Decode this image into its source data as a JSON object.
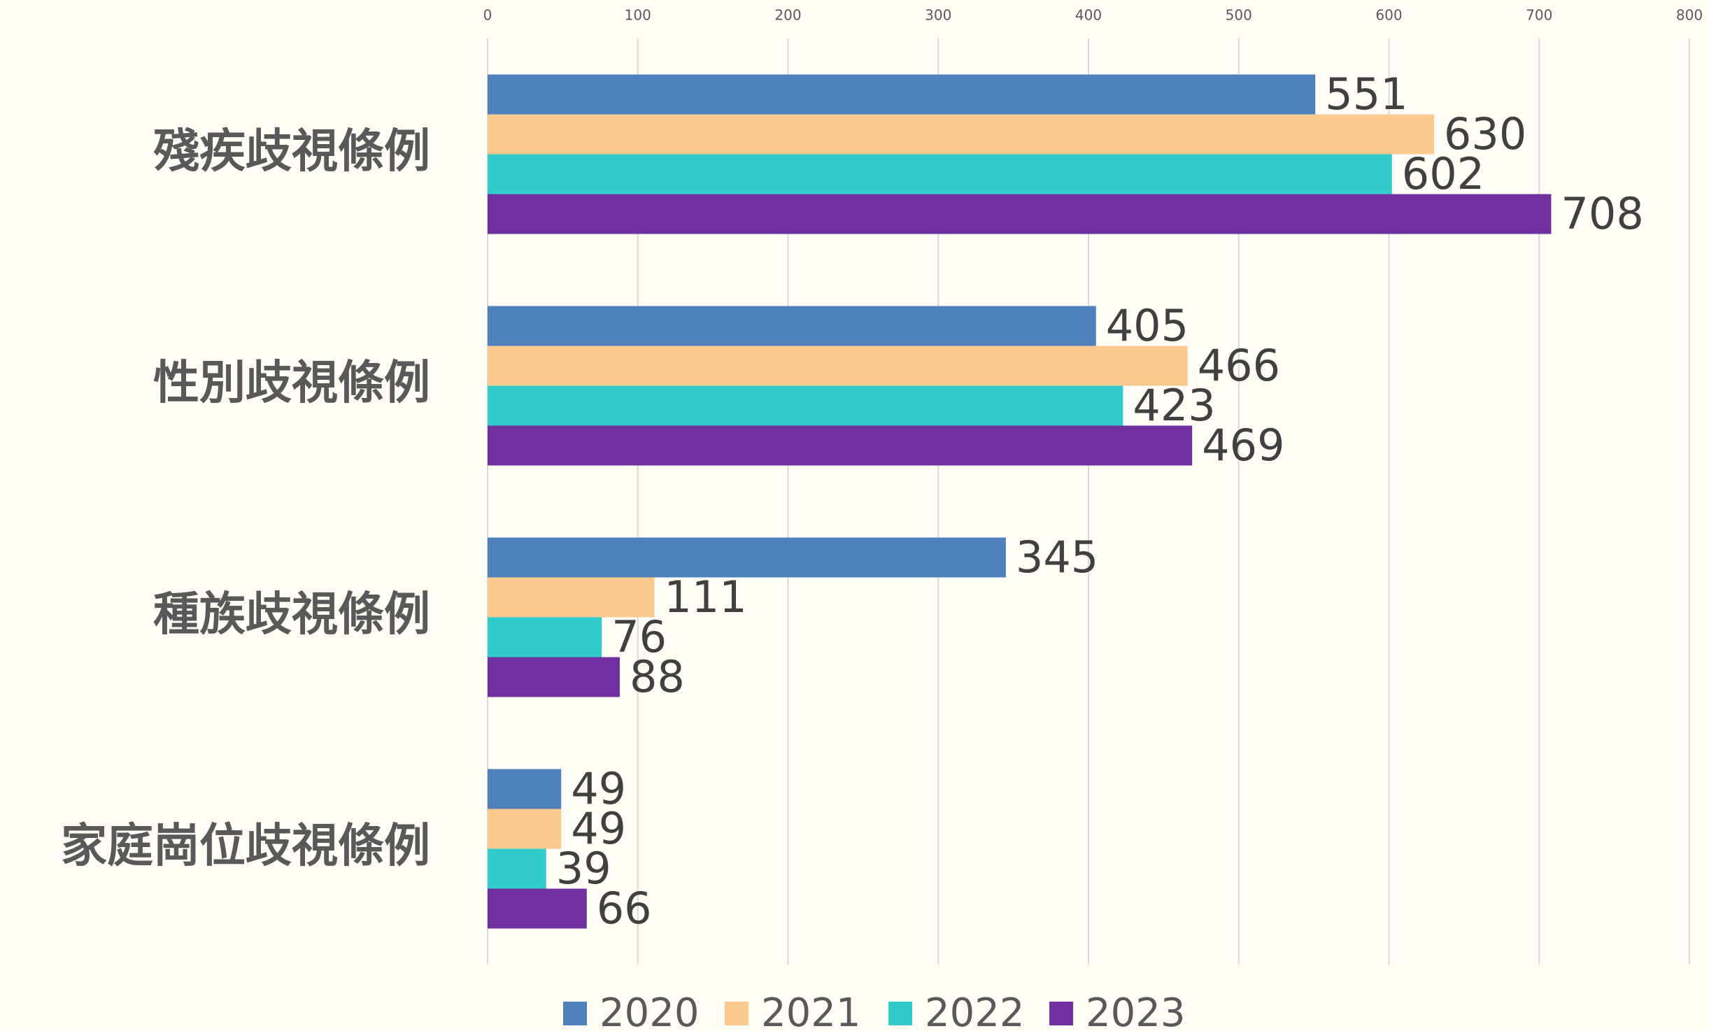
{
  "chart_data": {
    "type": "bar",
    "orientation": "horizontal",
    "categories": [
      "殘疾歧視條例",
      "性別歧視條例",
      "種族歧視條例",
      "家庭崗位歧視條例"
    ],
    "series": [
      {
        "name": "2020",
        "color": "#4f81bd",
        "values": [
          551,
          405,
          345,
          49
        ]
      },
      {
        "name": "2021",
        "color": "#fac990",
        "values": [
          630,
          466,
          111,
          49
        ]
      },
      {
        "name": "2022",
        "color": "#33cccc",
        "values": [
          602,
          423,
          76,
          39
        ]
      },
      {
        "name": "2023",
        "color": "#7030a0",
        "values": [
          708,
          469,
          88,
          66
        ]
      }
    ],
    "xlim": [
      0,
      800
    ],
    "xticks": [
      0,
      100,
      200,
      300,
      400,
      500,
      600,
      700,
      800
    ],
    "grid": true,
    "legend": "bottom"
  }
}
